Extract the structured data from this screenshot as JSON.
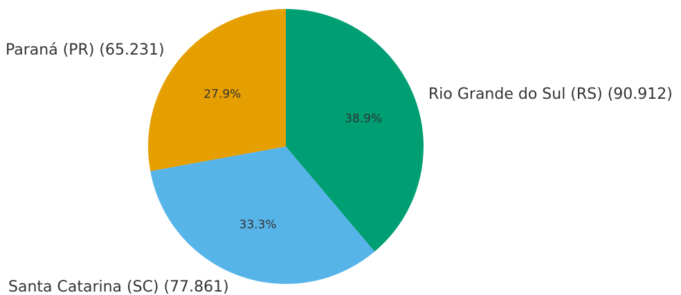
{
  "chart_data": {
    "type": "pie",
    "title": "",
    "start_angle_deg": 90,
    "direction": "clockwise",
    "slices": [
      {
        "label": "Rio Grande do Sul (RS) (90.912)",
        "value": 90912,
        "percent_label": "38.9%",
        "color": "#009E73"
      },
      {
        "label": "Santa Catarina (SC) (77.861)",
        "value": 77861,
        "percent_label": "33.3%",
        "color": "#56B4E9"
      },
      {
        "label": "Paraná (PR) (65.231)",
        "value": 65231,
        "percent_label": "27.9%",
        "color": "#E69F00"
      }
    ]
  }
}
